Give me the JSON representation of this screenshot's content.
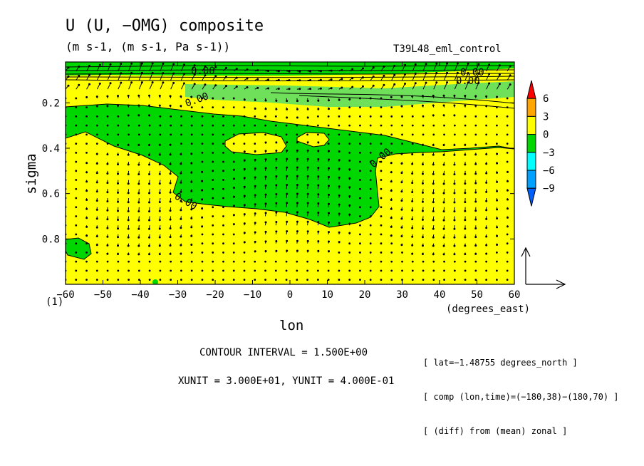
{
  "title": "U (U, −OMG) composite",
  "units": "(m s-1, (m s-1, Pa s-1))",
  "run_label": "T39L48_eml_control",
  "contour_interval": "CONTOUR INTERVAL = 1.500E+00",
  "vector_units": "XUNIT = 3.000E+01, YUNIT = 4.000E-01",
  "info_lines": [
    "[ lat=−1.48755 degrees_north ]",
    "[ comp (lon,time)=(−180,38)−(180,70) ]",
    "[ (diff) from (mean) zonal ]"
  ],
  "colors": {
    "yellow": "#ffff00",
    "green": "#00d700",
    "light_green": "#6ee05a"
  },
  "chart_data": {
    "type": "heatmap",
    "xlabel": "lon",
    "xunit_label": "(degrees_east)",
    "ylabel": "sigma",
    "xlim": [
      -60,
      60
    ],
    "ylim": [
      1.0,
      0.02
    ],
    "x_ticks": [
      "−60",
      "−50",
      "−40",
      "−30",
      "−20",
      "−10",
      "0",
      "10",
      "20",
      "30",
      "40",
      "50",
      "60"
    ],
    "y_ticks": [
      "0.2",
      "0.4",
      "0.6",
      "0.8"
    ],
    "x_first_tick_prefix": "(1)",
    "contour_labels": [
      "0.00",
      "0.00",
      "0.00",
      "0.00",
      "0.00",
      "0.00"
    ],
    "colorbar": {
      "levels": [
        "6",
        "3",
        "0",
        "−3",
        "−6",
        "−9"
      ],
      "colors": [
        "#ff0000",
        "#ffa500",
        "#ffff00",
        "#00d700",
        "#00ffff",
        "#00a0ff",
        "#0060ff"
      ]
    },
    "regions": [
      {
        "value_range": "0 to 3",
        "color": "#ffff00",
        "description": "positive anomaly"
      },
      {
        "value_range": "-3 to 0",
        "color": "#00d700",
        "description": "negative anomaly"
      }
    ]
  }
}
